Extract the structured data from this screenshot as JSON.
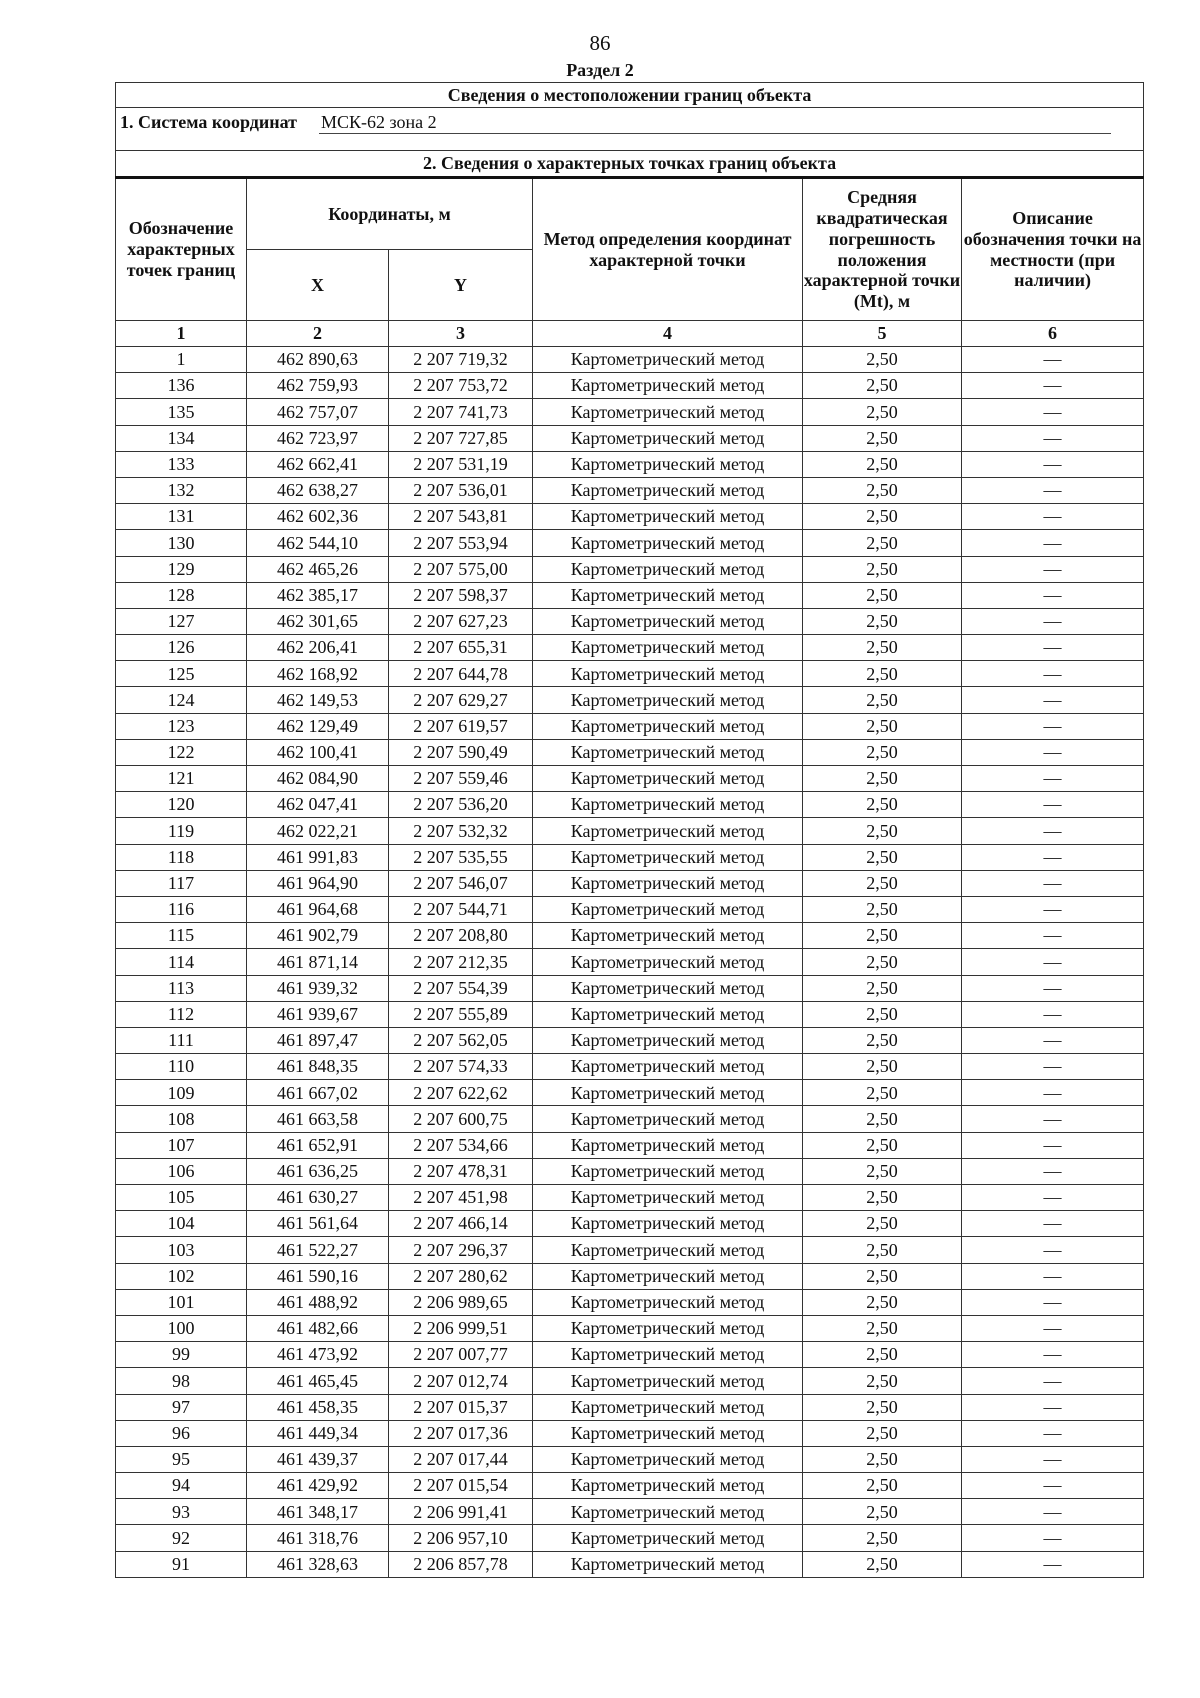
{
  "page_number": "86",
  "section": "Раздел 2",
  "table_title": "Сведения о местоположении границ объекта",
  "coordinate_system": {
    "label": "1. Система координат",
    "value": "МСК-62 зона 2"
  },
  "points_title": "2. Сведения о характерных точках границ объекта",
  "headers": {
    "point": "Обозначение характерных точек границ",
    "coords": "Координаты, м",
    "x": "X",
    "y": "Y",
    "method": "Метод определения координат характерной точки",
    "error": "Средняя квадратическая погрешность положения характерной точки (Mt), м",
    "description": "Описание обозначения точки на местности (при наличии)"
  },
  "column_numbers": [
    "1",
    "2",
    "3",
    "4",
    "5",
    "6"
  ],
  "rows": [
    [
      "1",
      "462 890,63",
      "2 207 719,32",
      "Картометрический метод",
      "2,50",
      "—"
    ],
    [
      "136",
      "462 759,93",
      "2 207 753,72",
      "Картометрический метод",
      "2,50",
      "—"
    ],
    [
      "135",
      "462 757,07",
      "2 207 741,73",
      "Картометрический метод",
      "2,50",
      "—"
    ],
    [
      "134",
      "462 723,97",
      "2 207 727,85",
      "Картометрический метод",
      "2,50",
      "—"
    ],
    [
      "133",
      "462 662,41",
      "2 207 531,19",
      "Картометрический метод",
      "2,50",
      "—"
    ],
    [
      "132",
      "462 638,27",
      "2 207 536,01",
      "Картометрический метод",
      "2,50",
      "—"
    ],
    [
      "131",
      "462 602,36",
      "2 207 543,81",
      "Картометрический метод",
      "2,50",
      "—"
    ],
    [
      "130",
      "462 544,10",
      "2 207 553,94",
      "Картометрический метод",
      "2,50",
      "—"
    ],
    [
      "129",
      "462 465,26",
      "2 207 575,00",
      "Картометрический метод",
      "2,50",
      "—"
    ],
    [
      "128",
      "462 385,17",
      "2 207 598,37",
      "Картометрический метод",
      "2,50",
      "—"
    ],
    [
      "127",
      "462 301,65",
      "2 207 627,23",
      "Картометрический метод",
      "2,50",
      "—"
    ],
    [
      "126",
      "462 206,41",
      "2 207 655,31",
      "Картометрический метод",
      "2,50",
      "—"
    ],
    [
      "125",
      "462 168,92",
      "2 207 644,78",
      "Картометрический метод",
      "2,50",
      "—"
    ],
    [
      "124",
      "462 149,53",
      "2 207 629,27",
      "Картометрический метод",
      "2,50",
      "—"
    ],
    [
      "123",
      "462 129,49",
      "2 207 619,57",
      "Картометрический метод",
      "2,50",
      "—"
    ],
    [
      "122",
      "462 100,41",
      "2 207 590,49",
      "Картометрический метод",
      "2,50",
      "—"
    ],
    [
      "121",
      "462 084,90",
      "2 207 559,46",
      "Картометрический метод",
      "2,50",
      "—"
    ],
    [
      "120",
      "462 047,41",
      "2 207 536,20",
      "Картометрический метод",
      "2,50",
      "—"
    ],
    [
      "119",
      "462 022,21",
      "2 207 532,32",
      "Картометрический метод",
      "2,50",
      "—"
    ],
    [
      "118",
      "461 991,83",
      "2 207 535,55",
      "Картометрический метод",
      "2,50",
      "—"
    ],
    [
      "117",
      "461 964,90",
      "2 207 546,07",
      "Картометрический метод",
      "2,50",
      "—"
    ],
    [
      "116",
      "461 964,68",
      "2 207 544,71",
      "Картометрический метод",
      "2,50",
      "—"
    ],
    [
      "115",
      "461 902,79",
      "2 207 208,80",
      "Картометрический метод",
      "2,50",
      "—"
    ],
    [
      "114",
      "461 871,14",
      "2 207 212,35",
      "Картометрический метод",
      "2,50",
      "—"
    ],
    [
      "113",
      "461 939,32",
      "2 207 554,39",
      "Картометрический метод",
      "2,50",
      "—"
    ],
    [
      "112",
      "461 939,67",
      "2 207 555,89",
      "Картометрический метод",
      "2,50",
      "—"
    ],
    [
      "111",
      "461 897,47",
      "2 207 562,05",
      "Картометрический метод",
      "2,50",
      "—"
    ],
    [
      "110",
      "461 848,35",
      "2 207 574,33",
      "Картометрический метод",
      "2,50",
      "—"
    ],
    [
      "109",
      "461 667,02",
      "2 207 622,62",
      "Картометрический метод",
      "2,50",
      "—"
    ],
    [
      "108",
      "461 663,58",
      "2 207 600,75",
      "Картометрический метод",
      "2,50",
      "—"
    ],
    [
      "107",
      "461 652,91",
      "2 207 534,66",
      "Картометрический метод",
      "2,50",
      "—"
    ],
    [
      "106",
      "461 636,25",
      "2 207 478,31",
      "Картометрический метод",
      "2,50",
      "—"
    ],
    [
      "105",
      "461 630,27",
      "2 207 451,98",
      "Картометрический метод",
      "2,50",
      "—"
    ],
    [
      "104",
      "461 561,64",
      "2 207 466,14",
      "Картометрический метод",
      "2,50",
      "—"
    ],
    [
      "103",
      "461 522,27",
      "2 207 296,37",
      "Картометрический метод",
      "2,50",
      "—"
    ],
    [
      "102",
      "461 590,16",
      "2 207 280,62",
      "Картометрический метод",
      "2,50",
      "—"
    ],
    [
      "101",
      "461 488,92",
      "2 206 989,65",
      "Картометрический метод",
      "2,50",
      "—"
    ],
    [
      "100",
      "461 482,66",
      "2 206 999,51",
      "Картометрический метод",
      "2,50",
      "—"
    ],
    [
      "99",
      "461 473,92",
      "2 207 007,77",
      "Картометрический метод",
      "2,50",
      "—"
    ],
    [
      "98",
      "461 465,45",
      "2 207 012,74",
      "Картометрический метод",
      "2,50",
      "—"
    ],
    [
      "97",
      "461 458,35",
      "2 207 015,37",
      "Картометрический метод",
      "2,50",
      "—"
    ],
    [
      "96",
      "461 449,34",
      "2 207 017,36",
      "Картометрический метод",
      "2,50",
      "—"
    ],
    [
      "95",
      "461 439,37",
      "2 207 017,44",
      "Картометрический метод",
      "2,50",
      "—"
    ],
    [
      "94",
      "461 429,92",
      "2 207 015,54",
      "Картометрический метод",
      "2,50",
      "—"
    ],
    [
      "93",
      "461 348,17",
      "2 206 991,41",
      "Картометрический метод",
      "2,50",
      "—"
    ],
    [
      "92",
      "461 318,76",
      "2 206 957,10",
      "Картометрический метод",
      "2,50",
      "—"
    ],
    [
      "91",
      "461 328,63",
      "2 206 857,78",
      "Картометрический метод",
      "2,50",
      "—"
    ]
  ]
}
